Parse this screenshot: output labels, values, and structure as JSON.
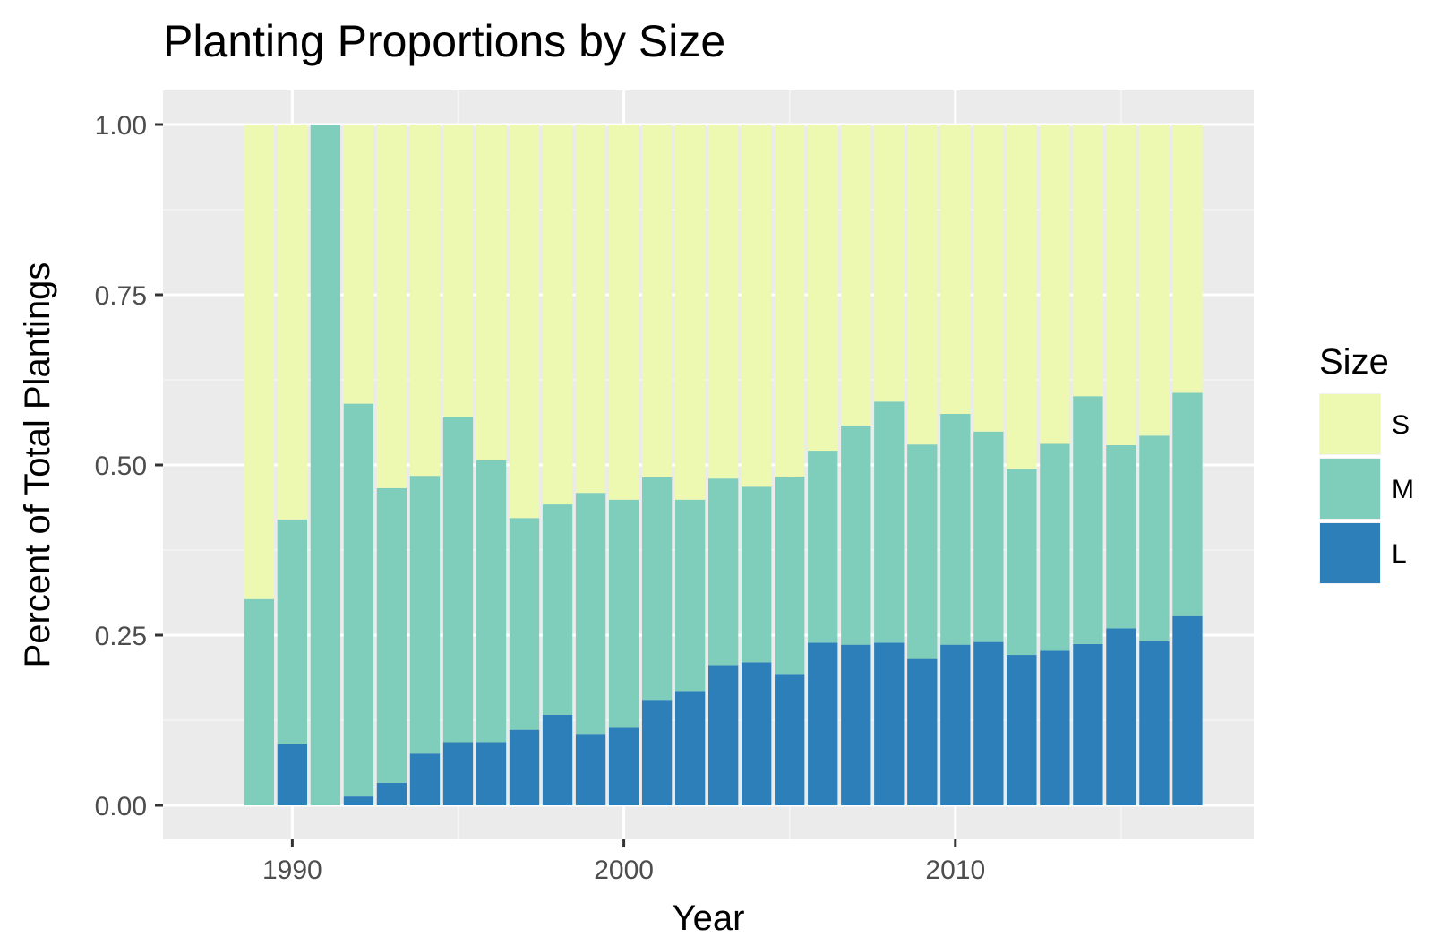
{
  "chart_data": {
    "type": "bar",
    "stacked": true,
    "title": "Planting Proportions by Size",
    "xlabel": "Year",
    "ylabel": "Percent of Total Plantings",
    "x": [
      1989,
      1990,
      1991,
      1992,
      1993,
      1994,
      1995,
      1996,
      1997,
      1998,
      1999,
      2000,
      2001,
      2002,
      2003,
      2004,
      2005,
      2006,
      2007,
      2008,
      2009,
      2010,
      2011,
      2012,
      2013,
      2014,
      2015,
      2016,
      2017
    ],
    "xlim": [
      1986.1,
      2019.0
    ],
    "ylim": [
      -0.05,
      1.05
    ],
    "x_ticks": [
      1990,
      2000,
      2010
    ],
    "x_tick_labels": [
      "1990",
      "2000",
      "2010"
    ],
    "y_ticks": [
      0,
      0.25,
      0.5,
      0.75,
      1.0
    ],
    "y_tick_labels": [
      "0.00",
      "0.25",
      "0.50",
      "0.75",
      "1.00"
    ],
    "grid": true,
    "legend": {
      "title": "Size",
      "placement": "right",
      "entries": [
        "S",
        "M",
        "L"
      ]
    },
    "series": [
      {
        "name": "L",
        "color": "#2c7fb8",
        "values": [
          0.0,
          0.09,
          0.0,
          0.013,
          0.033,
          0.076,
          0.093,
          0.093,
          0.111,
          0.133,
          0.105,
          0.114,
          0.155,
          0.168,
          0.206,
          0.21,
          0.193,
          0.239,
          0.236,
          0.239,
          0.215,
          0.236,
          0.24,
          0.221,
          0.227,
          0.237,
          0.26,
          0.241,
          0.278
        ]
      },
      {
        "name": "M",
        "color": "#7fcdbb",
        "values": [
          0.303,
          0.33,
          1.0,
          0.577,
          0.433,
          0.408,
          0.477,
          0.414,
          0.311,
          0.309,
          0.354,
          0.335,
          0.327,
          0.281,
          0.274,
          0.258,
          0.29,
          0.282,
          0.322,
          0.354,
          0.315,
          0.339,
          0.309,
          0.273,
          0.304,
          0.364,
          0.269,
          0.302,
          0.328
        ]
      },
      {
        "name": "S",
        "color": "#edf8b1",
        "values": [
          0.697,
          0.58,
          0.0,
          0.41,
          0.534,
          0.516,
          0.43,
          0.493,
          0.578,
          0.558,
          0.541,
          0.551,
          0.518,
          0.551,
          0.52,
          0.532,
          0.517,
          0.479,
          0.442,
          0.407,
          0.47,
          0.425,
          0.451,
          0.506,
          0.469,
          0.399,
          0.471,
          0.457,
          0.394
        ]
      }
    ]
  },
  "colors": {
    "panel_background": "#ebebeb",
    "grid_major": "#ffffff",
    "grid_minor": "#f5f5f5",
    "tick_text": "#4d4d4d",
    "tick_mark": "#333333"
  }
}
